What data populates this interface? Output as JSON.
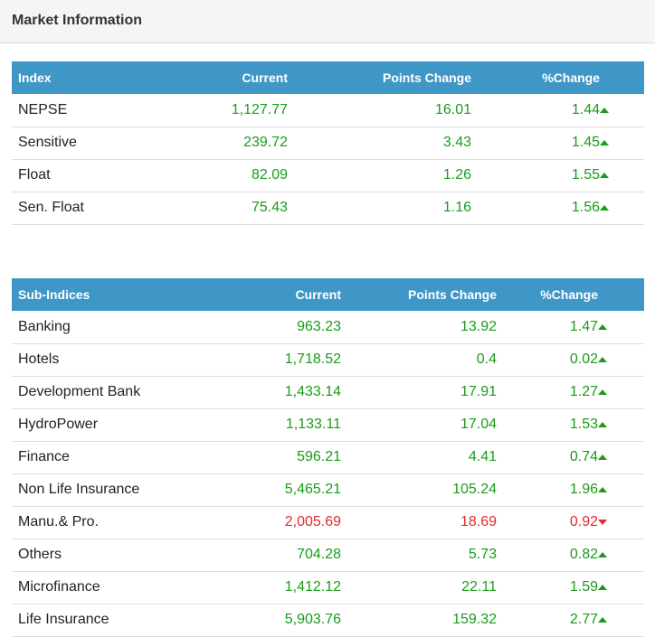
{
  "header": {
    "title": "Market Information"
  },
  "index_table": {
    "columns": [
      "Index",
      "Current",
      "Points Change",
      "%Change"
    ],
    "rows": [
      {
        "name": "NEPSE",
        "current": "1,127.77",
        "points": "16.01",
        "pct": "1.44",
        "direction": "up"
      },
      {
        "name": "Sensitive",
        "current": "239.72",
        "points": "3.43",
        "pct": "1.45",
        "direction": "up"
      },
      {
        "name": "Float",
        "current": "82.09",
        "points": "1.26",
        "pct": "1.55",
        "direction": "up"
      },
      {
        "name": "Sen. Float",
        "current": "75.43",
        "points": "1.16",
        "pct": "1.56",
        "direction": "up"
      }
    ]
  },
  "sub_table": {
    "columns": [
      "Sub-Indices",
      "Current",
      "Points Change",
      "%Change"
    ],
    "rows": [
      {
        "name": "Banking",
        "current": "963.23",
        "points": "13.92",
        "pct": "1.47",
        "direction": "up"
      },
      {
        "name": "Hotels",
        "current": "1,718.52",
        "points": "0.4",
        "pct": "0.02",
        "direction": "up"
      },
      {
        "name": "Development Bank",
        "current": "1,433.14",
        "points": "17.91",
        "pct": "1.27",
        "direction": "up"
      },
      {
        "name": "HydroPower",
        "current": "1,133.11",
        "points": "17.04",
        "pct": "1.53",
        "direction": "up"
      },
      {
        "name": "Finance",
        "current": "596.21",
        "points": "4.41",
        "pct": "0.74",
        "direction": "up"
      },
      {
        "name": "Non Life Insurance",
        "current": "5,465.21",
        "points": "105.24",
        "pct": "1.96",
        "direction": "up"
      },
      {
        "name": "Manu.& Pro.",
        "current": "2,005.69",
        "points": "18.69",
        "pct": "0.92",
        "direction": "down"
      },
      {
        "name": "Others",
        "current": "704.28",
        "points": "5.73",
        "pct": "0.82",
        "direction": "up"
      },
      {
        "name": "Microfinance",
        "current": "1,412.12",
        "points": "22.11",
        "pct": "1.59",
        "direction": "up"
      },
      {
        "name": "Life Insurance",
        "current": "5,903.76",
        "points": "159.32",
        "pct": "2.77",
        "direction": "up"
      }
    ]
  },
  "colors": {
    "header_bg": "#3f97c8",
    "positive": "#1a9c1a",
    "negative": "#e22b2b"
  },
  "icons": {
    "up": "triangle-up-icon",
    "down": "triangle-down-icon"
  }
}
